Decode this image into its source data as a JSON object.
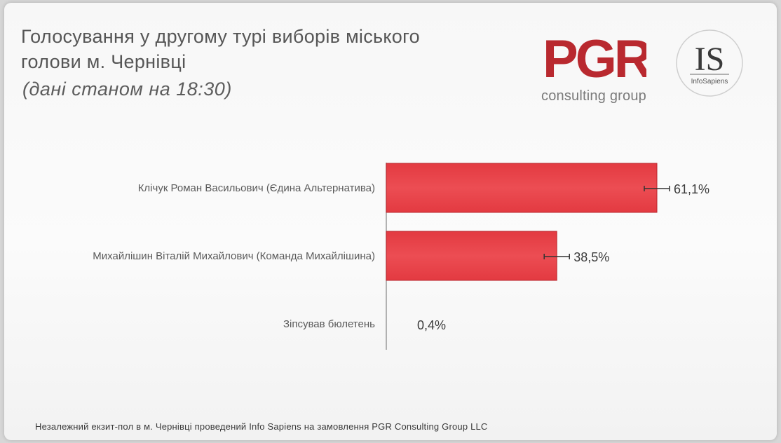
{
  "slide": {
    "title_line1": "Голосування у другому турі виборів міського",
    "title_line2": "голови м. Чернівці",
    "subtitle": "(дані станом на 18:30)",
    "footnote": "Незалежний екзит-пол в м. Чернівці проведений Info Sapiens на замовлення PGR Consulting Group LLC"
  },
  "logos": {
    "pgr_mark": "PGR",
    "pgr_sub": "consulting group",
    "is_mark": "IS",
    "is_sub": "InfoSapiens",
    "pgr_color": "#b9292f"
  },
  "chart_data": {
    "type": "bar",
    "orientation": "horizontal",
    "categories": [
      "Клічук Роман Васильович (Єдина Альтернатива)",
      "Михайлішин Віталій Михайлович (Команда Михайлішина)",
      "Зіпсував бюлетень"
    ],
    "values": [
      61.1,
      38.5,
      0.4
    ],
    "value_labels": [
      "61,1%",
      "38,5%",
      "0,4%"
    ],
    "error_bars": true,
    "xlim": [
      0,
      61.1
    ],
    "bar_color": "#e8383f",
    "grid": false
  }
}
